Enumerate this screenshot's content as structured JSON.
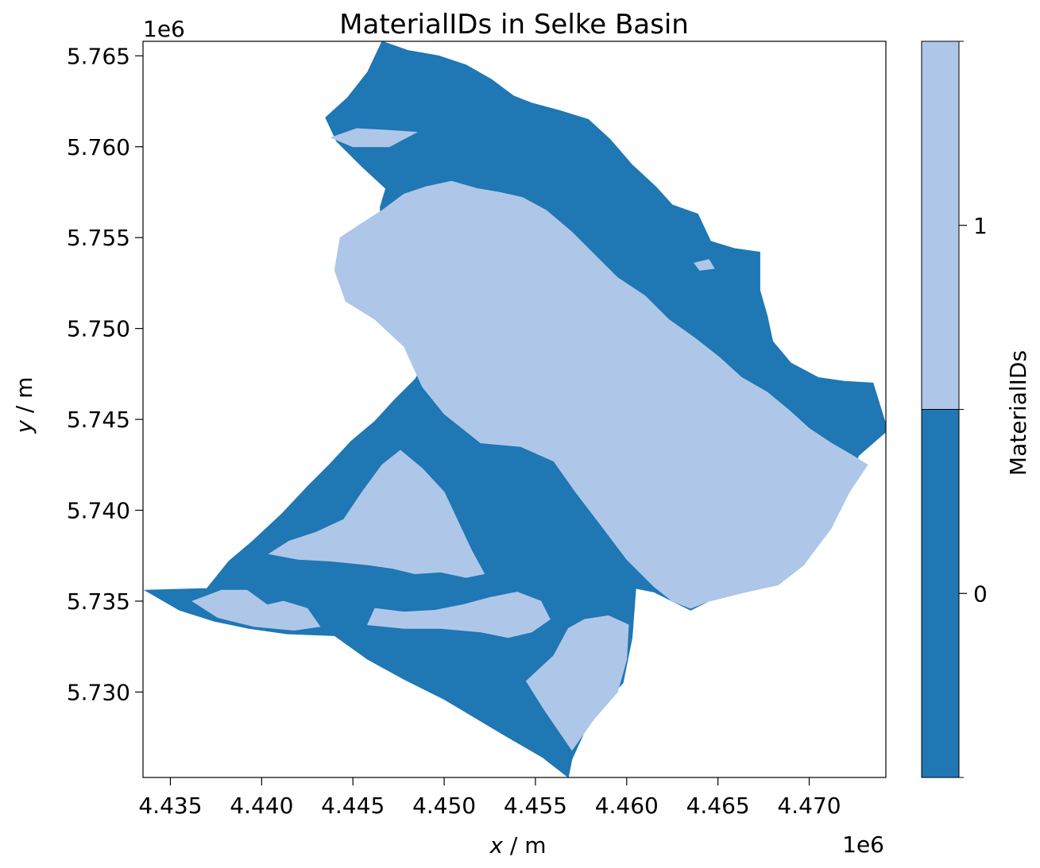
{
  "chart_data": {
    "type": "heatmap",
    "title": "MaterialIDs in Selke Basin",
    "xlabel_var": "x",
    "xlabel_unit": " / m",
    "ylabel_var": "y",
    "ylabel_unit": " / m",
    "x_offset_label": "1e6",
    "y_offset_label": "1e6",
    "xlim": [
      4.4335,
      4.4742
    ],
    "ylim": [
      5.7253,
      5.7658
    ],
    "xticks": [
      4.435,
      4.44,
      4.445,
      4.45,
      4.455,
      4.46,
      4.465,
      4.47
    ],
    "xtick_labels": [
      "4.435",
      "4.440",
      "4.445",
      "4.450",
      "4.455",
      "4.460",
      "4.465",
      "4.470"
    ],
    "yticks": [
      5.73,
      5.735,
      5.74,
      5.745,
      5.75,
      5.755,
      5.76,
      5.765
    ],
    "ytick_labels": [
      "5.730",
      "5.735",
      "5.740",
      "5.745",
      "5.750",
      "5.755",
      "5.760",
      "5.765"
    ],
    "grid": false,
    "colorbar": {
      "label": "MaterialIDs",
      "categories": [
        {
          "value": 0,
          "label": "0",
          "color": "#1f77b4"
        },
        {
          "value": 1,
          "label": "1",
          "color": "#aec7e8"
        }
      ]
    },
    "regions": [
      {
        "material": 0,
        "polygon": [
          [
            4.4336,
            5.7356
          ],
          [
            4.437,
            5.7357
          ],
          [
            4.4382,
            5.7372
          ],
          [
            4.4395,
            5.7383
          ],
          [
            4.4411,
            5.7398
          ],
          [
            4.4425,
            5.7413
          ],
          [
            4.4437,
            5.7425
          ],
          [
            4.4449,
            5.7438
          ],
          [
            4.4462,
            5.7449
          ],
          [
            4.4473,
            5.7461
          ],
          [
            4.4484,
            5.7472
          ],
          [
            4.449,
            5.7482
          ],
          [
            4.4487,
            5.7496
          ],
          [
            4.4482,
            5.7506
          ],
          [
            4.4468,
            5.7511
          ],
          [
            4.4458,
            5.7518
          ],
          [
            4.4452,
            5.7531
          ],
          [
            4.4454,
            5.7542
          ],
          [
            4.4465,
            5.7556
          ],
          [
            4.4465,
            5.7567
          ],
          [
            4.4468,
            5.7577
          ],
          [
            4.4455,
            5.7589
          ],
          [
            4.4441,
            5.7603
          ],
          [
            4.4435,
            5.7616
          ],
          [
            4.4447,
            5.7627
          ],
          [
            4.4458,
            5.7641
          ],
          [
            4.4466,
            5.7658
          ],
          [
            4.448,
            5.7653
          ],
          [
            4.4497,
            5.765
          ],
          [
            4.4512,
            5.7645
          ],
          [
            4.4526,
            5.7637
          ],
          [
            4.4538,
            5.7628
          ],
          [
            4.4548,
            5.7624
          ],
          [
            4.4563,
            5.762
          ],
          [
            4.4579,
            5.7615
          ],
          [
            4.4591,
            5.7604
          ],
          [
            4.4603,
            5.759
          ],
          [
            4.4616,
            5.7578
          ],
          [
            4.4625,
            5.7568
          ],
          [
            4.4639,
            5.7563
          ],
          [
            4.4646,
            5.7548
          ],
          [
            4.4659,
            5.7544
          ],
          [
            4.4673,
            5.7542
          ],
          [
            4.4673,
            5.7521
          ],
          [
            4.4677,
            5.7507
          ],
          [
            4.468,
            5.7493
          ],
          [
            4.469,
            5.7481
          ],
          [
            4.4705,
            5.7473
          ],
          [
            4.4719,
            5.7471
          ],
          [
            4.4735,
            5.747
          ],
          [
            4.4743,
            5.7444
          ],
          [
            4.4727,
            5.743
          ],
          [
            4.4722,
            5.741
          ],
          [
            4.471,
            5.7388
          ],
          [
            4.4697,
            5.737
          ],
          [
            4.4683,
            5.7359
          ],
          [
            4.4665,
            5.7355
          ],
          [
            4.4645,
            5.735
          ],
          [
            4.4635,
            5.7345
          ],
          [
            4.4625,
            5.735
          ],
          [
            4.4615,
            5.7355
          ],
          [
            4.4605,
            5.7357
          ],
          [
            4.4603,
            5.733
          ],
          [
            4.4598,
            5.7305
          ],
          [
            4.458,
            5.7285
          ],
          [
            4.457,
            5.7263
          ],
          [
            4.4568,
            5.7253
          ],
          [
            4.4554,
            5.7264
          ],
          [
            4.453,
            5.7278
          ],
          [
            4.45,
            5.7296
          ],
          [
            4.4478,
            5.7307
          ],
          [
            4.4458,
            5.7318
          ],
          [
            4.444,
            5.7331
          ],
          [
            4.4414,
            5.7332
          ],
          [
            4.4393,
            5.7335
          ],
          [
            4.4374,
            5.7339
          ],
          [
            4.4355,
            5.7345
          ]
        ]
      },
      {
        "material": 1,
        "polygon": [
          [
            4.4443,
            5.755
          ],
          [
            4.4455,
            5.7558
          ],
          [
            4.4466,
            5.7565
          ],
          [
            4.4478,
            5.7574
          ],
          [
            4.449,
            5.7578
          ],
          [
            4.4504,
            5.7581
          ],
          [
            4.4518,
            5.7577
          ],
          [
            4.453,
            5.7575
          ],
          [
            4.4543,
            5.7572
          ],
          [
            4.4556,
            5.7565
          ],
          [
            4.457,
            5.7553
          ],
          [
            4.4582,
            5.7541
          ],
          [
            4.4595,
            5.7528
          ],
          [
            4.461,
            5.7518
          ],
          [
            4.4623,
            5.7505
          ],
          [
            4.4637,
            5.7495
          ],
          [
            4.4651,
            5.7484
          ],
          [
            4.4663,
            5.7473
          ],
          [
            4.4677,
            5.7465
          ],
          [
            4.4689,
            5.7455
          ],
          [
            4.47,
            5.7445
          ],
          [
            4.4712,
            5.7437
          ],
          [
            4.4724,
            5.743
          ],
          [
            4.4732,
            5.7425
          ],
          [
            4.4722,
            5.741
          ],
          [
            4.4712,
            5.739
          ],
          [
            4.4697,
            5.737
          ],
          [
            4.4683,
            5.7359
          ],
          [
            4.4665,
            5.7355
          ],
          [
            4.4645,
            5.735
          ],
          [
            4.4635,
            5.7346
          ],
          [
            4.4625,
            5.735
          ],
          [
            4.4615,
            5.7358
          ],
          [
            4.46,
            5.7373
          ],
          [
            4.4585,
            5.7393
          ],
          [
            4.4572,
            5.741
          ],
          [
            4.456,
            5.7427
          ],
          [
            4.4542,
            5.7435
          ],
          [
            4.452,
            5.7437
          ],
          [
            4.45,
            5.7453
          ],
          [
            4.4488,
            5.7468
          ],
          [
            4.4478,
            5.749
          ],
          [
            4.4462,
            5.7505
          ],
          [
            4.4446,
            5.7515
          ],
          [
            4.444,
            5.7532
          ]
        ]
      },
      {
        "material": 1,
        "polygon": [
          [
            4.4404,
            5.7376
          ],
          [
            4.442,
            5.7373
          ],
          [
            4.4438,
            5.7372
          ],
          [
            4.4458,
            5.737
          ],
          [
            4.4472,
            5.7368
          ],
          [
            4.4484,
            5.7365
          ],
          [
            4.4498,
            5.7366
          ],
          [
            4.4512,
            5.7363
          ],
          [
            4.4522,
            5.7365
          ],
          [
            4.4515,
            5.7378
          ],
          [
            4.4508,
            5.7393
          ],
          [
            4.45,
            5.741
          ],
          [
            4.4488,
            5.7423
          ],
          [
            4.4476,
            5.7433
          ],
          [
            4.4466,
            5.7425
          ],
          [
            4.4455,
            5.741
          ],
          [
            4.4445,
            5.7395
          ],
          [
            4.443,
            5.7388
          ],
          [
            4.4415,
            5.7383
          ]
        ]
      },
      {
        "material": 1,
        "polygon": [
          [
            4.4362,
            5.735
          ],
          [
            4.4378,
            5.7356
          ],
          [
            4.4392,
            5.7356
          ],
          [
            4.4403,
            5.7348
          ],
          [
            4.4412,
            5.735
          ],
          [
            4.4425,
            5.7346
          ],
          [
            4.4432,
            5.7336
          ],
          [
            4.4418,
            5.7334
          ],
          [
            4.4396,
            5.7336
          ],
          [
            4.4376,
            5.7341
          ]
        ]
      },
      {
        "material": 1,
        "polygon": [
          [
            4.4458,
            5.7337
          ],
          [
            4.4478,
            5.7335
          ],
          [
            4.4498,
            5.7335
          ],
          [
            4.452,
            5.7333
          ],
          [
            4.4535,
            5.733
          ],
          [
            4.4548,
            5.7333
          ],
          [
            4.4558,
            5.734
          ],
          [
            4.4553,
            5.735
          ],
          [
            4.454,
            5.7355
          ],
          [
            4.4525,
            5.7352
          ],
          [
            4.451,
            5.7348
          ],
          [
            4.4495,
            5.7345
          ],
          [
            4.4478,
            5.7344
          ],
          [
            4.4462,
            5.7346
          ]
        ]
      },
      {
        "material": 1,
        "polygon": [
          [
            4.456,
            5.732
          ],
          [
            4.4568,
            5.7335
          ],
          [
            4.4577,
            5.734
          ],
          [
            4.459,
            5.7342
          ],
          [
            4.4601,
            5.7337
          ],
          [
            4.46,
            5.7318
          ],
          [
            4.4595,
            5.73
          ],
          [
            4.4582,
            5.7285
          ],
          [
            4.457,
            5.7268
          ],
          [
            4.4555,
            5.729
          ],
          [
            4.4545,
            5.7306
          ]
        ]
      },
      {
        "material": 1,
        "polygon": [
          [
            4.4438,
            5.7605
          ],
          [
            4.4452,
            5.761
          ],
          [
            4.447,
            5.7609
          ],
          [
            4.4485,
            5.7608
          ],
          [
            4.447,
            5.76
          ],
          [
            4.445,
            5.76
          ]
        ]
      },
      {
        "material": 1,
        "polygon": [
          [
            4.4637,
            5.7536
          ],
          [
            4.4645,
            5.7538
          ],
          [
            4.4648,
            5.7533
          ],
          [
            4.464,
            5.7532
          ]
        ]
      }
    ]
  }
}
